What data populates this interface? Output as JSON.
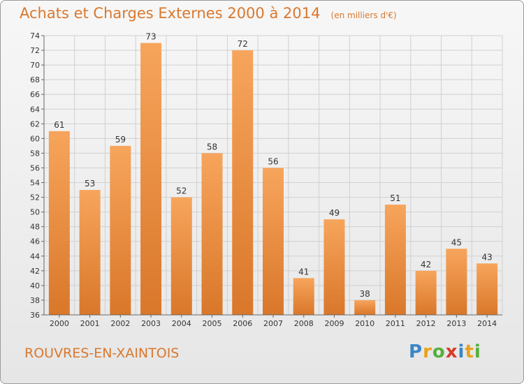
{
  "title": "Achats et Charges Externes 2000 à 2014",
  "unit": "(en milliers d'€)",
  "commune": "ROUVRES-EN-XAINTOIS",
  "logo": {
    "letters": [
      "P",
      "r",
      "o",
      "x",
      "i",
      "t",
      "i"
    ],
    "colors": [
      "#3a86c8",
      "#e8a21c",
      "#54b03c",
      "#d93a2a",
      "#3a86c8",
      "#e8a21c",
      "#54b03c"
    ]
  },
  "colors": {
    "title": "#d9782d",
    "bar_top": "#f7a55c",
    "bar_bottom": "#d9772a",
    "grid": "#d0d0d0"
  },
  "chart_data": {
    "type": "bar",
    "title": "Achats et Charges Externes 2000 à 2014",
    "subtitle": "(en milliers d'€)",
    "categories": [
      "2000",
      "2001",
      "2002",
      "2003",
      "2004",
      "2005",
      "2006",
      "2007",
      "2008",
      "2009",
      "2010",
      "2011",
      "2012",
      "2013",
      "2014"
    ],
    "values": [
      61,
      53,
      59,
      73,
      52,
      58,
      72,
      56,
      41,
      49,
      38,
      51,
      42,
      45,
      43
    ],
    "ylim": [
      36,
      74
    ],
    "yticks": [
      36,
      38,
      40,
      42,
      44,
      46,
      48,
      50,
      52,
      54,
      56,
      58,
      60,
      62,
      64,
      66,
      68,
      70,
      72,
      74
    ],
    "grid": true,
    "data_labels": true,
    "legend": "none"
  }
}
